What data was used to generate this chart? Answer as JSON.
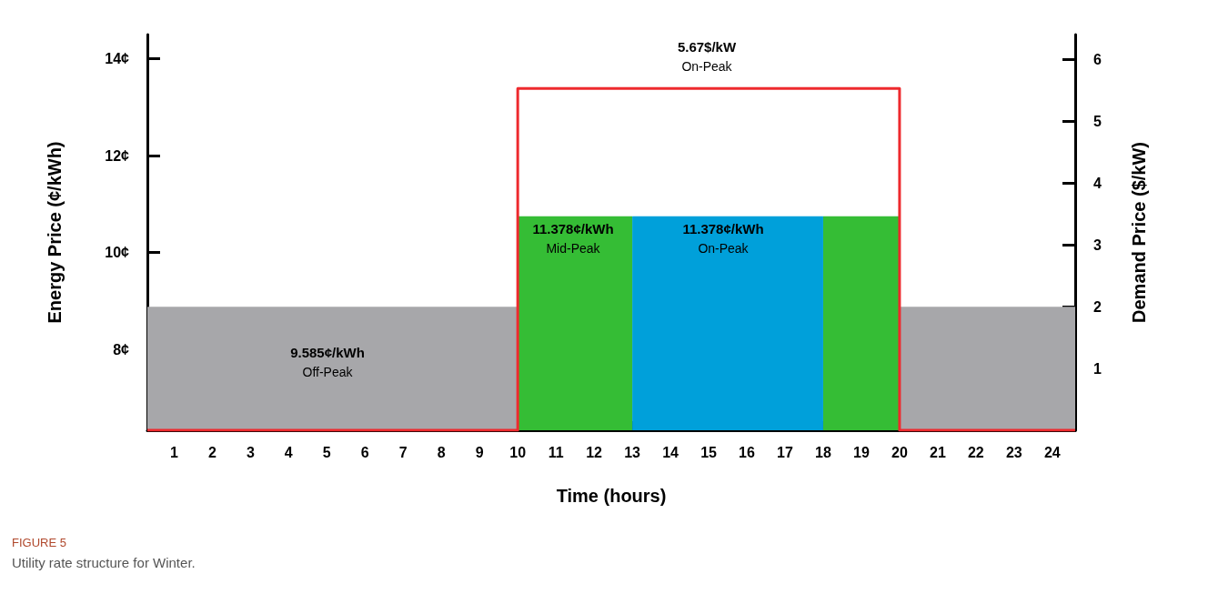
{
  "chart_data": {
    "type": "area",
    "title": "FIGURE 5",
    "subtitle": "Utility rate structure for Winter.",
    "xlabel": "Time (hours)",
    "ylabel": "Energy Price (¢/kWh)",
    "y2label": "Demand Price ($/kW)",
    "xlim": [
      0.3,
      24.6
    ],
    "xticks": [
      1,
      2,
      3,
      4,
      5,
      6,
      7,
      8,
      9,
      10,
      11,
      12,
      13,
      14,
      15,
      16,
      17,
      18,
      19,
      20,
      21,
      22,
      23,
      24
    ],
    "ylim": [
      6.33,
      14.5
    ],
    "yticks": [
      {
        "value": 8,
        "label": "8¢"
      },
      {
        "value": 10,
        "label": "10¢"
      },
      {
        "value": 12,
        "label": "12¢"
      },
      {
        "value": 14,
        "label": "14¢"
      }
    ],
    "y2lim": [
      0,
      6.4
    ],
    "y2ticks": [
      1,
      2,
      3,
      4,
      5,
      6
    ],
    "series": [
      {
        "color": "#a7a7aa",
        "x": [
          0.3,
          10
        ],
        "values": [
          8.88,
          8.88
        ]
      },
      {
        "color": "#a7a7aa",
        "x": [
          20,
          24.6
        ],
        "values": [
          8.88,
          8.88
        ]
      },
      {
        "color": "#35bd35",
        "x": [
          10,
          13
        ],
        "values": [
          10.75,
          10.75
        ]
      },
      {
        "color": "#35bd35",
        "x": [
          18,
          20
        ],
        "values": [
          10.75,
          10.75
        ]
      },
      {
        "color": "#00a0da",
        "x": [
          13,
          18
        ],
        "values": [
          10.75,
          10.75
        ]
      },
      {
        "type": "step",
        "axis": "y2",
        "color": "#ee2a2e",
        "x": [
          0.3,
          10,
          20,
          24.6
        ],
        "values": [
          0,
          5.53,
          0,
          0
        ]
      }
    ],
    "annotations": [
      "5.67$/kW\nOn-Peak",
      "11.378¢/kWh\nMid-Peak",
      "11.378¢/kWh\nOn-Peak",
      "9.585¢/kWh\nOff-Peak"
    ],
    "grid": false
  }
}
